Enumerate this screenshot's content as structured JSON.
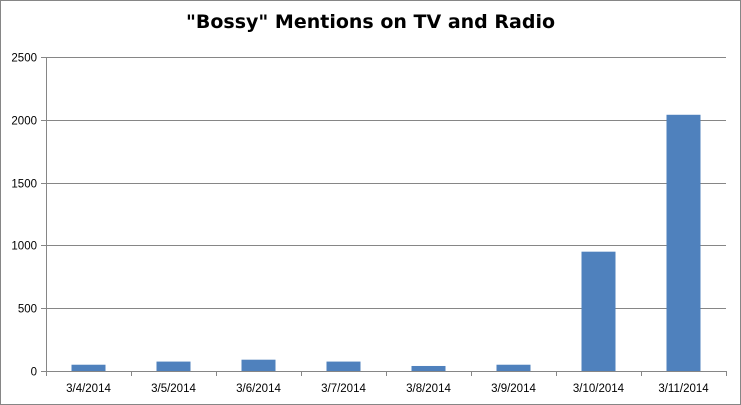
{
  "chart_data": {
    "type": "bar",
    "title": "\"Bossy\" Mentions on TV and Radio",
    "xlabel": "",
    "ylabel": "",
    "categories": [
      "3/4/2014",
      "3/5/2014",
      "3/6/2014",
      "3/7/2014",
      "3/8/2014",
      "3/9/2014",
      "3/10/2014",
      "3/11/2014"
    ],
    "values": [
      50,
      75,
      90,
      75,
      40,
      50,
      950,
      2040
    ],
    "ylim": [
      0,
      2500
    ],
    "yticks": [
      0,
      500,
      1000,
      1500,
      2000,
      2500
    ],
    "grid": true,
    "legend": "none",
    "bar_color": "#4f81bd",
    "grid_color": "#868686"
  }
}
